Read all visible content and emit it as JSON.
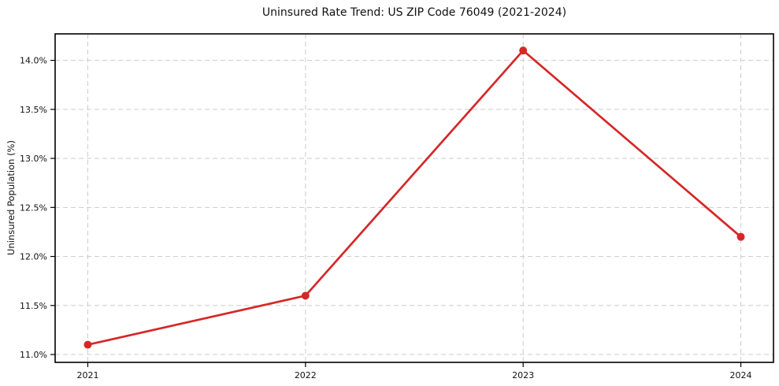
{
  "figure": {
    "background": "#ffffff"
  },
  "chart_data": {
    "type": "line",
    "title": "Uninsured Rate Trend: US ZIP Code 76049 (2021-2024)",
    "xlabel": "",
    "ylabel": "Uninsured Population (%)",
    "x": [
      2021,
      2022,
      2023,
      2024
    ],
    "x_tick_labels": [
      "2021",
      "2022",
      "2023",
      "2024"
    ],
    "series": [
      {
        "name": "Uninsured Population (%)",
        "values": [
          11.1,
          11.6,
          14.1,
          12.2
        ],
        "color": "#d62728",
        "marker": "circle"
      }
    ],
    "y_tick_values": [
      11.0,
      11.5,
      12.0,
      12.5,
      13.0,
      13.5,
      14.0
    ],
    "y_tick_labels": [
      "11.0%",
      "11.5%",
      "12.0%",
      "12.5%",
      "13.0%",
      "13.5%",
      "14.0%"
    ],
    "xlim": [
      2020.85,
      2024.15
    ],
    "ylim": [
      10.92,
      14.27
    ],
    "grid": true,
    "grid_color": "#cccccc",
    "grid_style": "dashed",
    "spine_color": "#000000",
    "legend": "none"
  }
}
